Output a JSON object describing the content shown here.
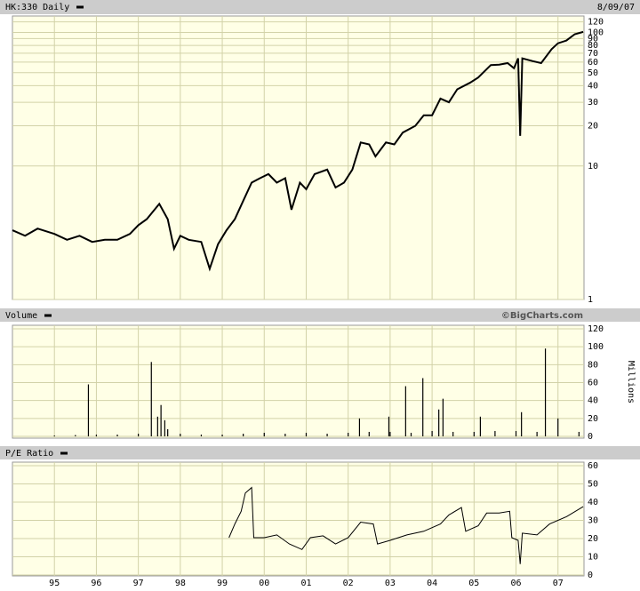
{
  "chart_data": [
    {
      "type": "line",
      "title": "HK:330 Daily",
      "date": "8/09/07",
      "log_scale": true,
      "grid": true,
      "color": "#000000",
      "xlim": [
        1994,
        2007.62
      ],
      "ylim": [
        1,
        125
      ],
      "yticks": [
        1,
        10,
        20,
        30,
        40,
        50,
        60,
        70,
        80,
        90,
        100,
        120
      ],
      "x": [
        1994.0,
        1994.3,
        1994.6,
        1995.0,
        1995.3,
        1995.6,
        1995.9,
        1996.2,
        1996.5,
        1996.8,
        1997.0,
        1997.2,
        1997.5,
        1997.7,
        1997.85,
        1998.0,
        1998.2,
        1998.5,
        1998.7,
        1998.9,
        1999.1,
        1999.3,
        1999.5,
        1999.7,
        1999.9,
        2000.1,
        2000.3,
        2000.5,
        2000.65,
        2000.85,
        2001.0,
        2001.2,
        2001.5,
        2001.7,
        2001.9,
        2002.1,
        2002.3,
        2002.5,
        2002.65,
        2002.9,
        2003.1,
        2003.3,
        2003.6,
        2003.8,
        2004.0,
        2004.2,
        2004.4,
        2004.6,
        2004.9,
        2005.1,
        2005.4,
        2005.6,
        2005.8,
        2005.95,
        2006.05,
        2006.1,
        2006.15,
        2006.4,
        2006.6,
        2006.85,
        2007.0,
        2007.2,
        2007.4,
        2007.6
      ],
      "values": [
        3.3,
        3.0,
        3.4,
        3.1,
        2.8,
        3.0,
        2.7,
        2.8,
        2.8,
        3.1,
        3.6,
        4.0,
        5.2,
        4.0,
        2.4,
        3.0,
        2.8,
        2.7,
        1.7,
        2.6,
        3.3,
        4.0,
        5.5,
        7.5,
        8.1,
        8.7,
        7.5,
        8.1,
        4.7,
        7.5,
        6.7,
        8.7,
        9.4,
        6.9,
        7.5,
        9.4,
        15,
        14.5,
        11.8,
        15,
        14.5,
        17.8,
        20,
        24,
        24,
        32,
        30,
        37.5,
        42,
        46,
        57,
        57.5,
        59,
        54,
        64,
        16.8,
        64,
        61,
        59,
        75,
        83,
        87,
        97,
        101
      ]
    },
    {
      "type": "bar",
      "title": "Volume",
      "source": "©BigCharts.com",
      "ylabel": "Millions",
      "grid": true,
      "color": "#000000",
      "xlim": [
        1994,
        2007.62
      ],
      "ylim": [
        0,
        120
      ],
      "yticks": [
        0,
        20,
        40,
        60,
        80,
        100,
        120
      ],
      "x": [
        1995.0,
        1995.5,
        1995.81,
        1996.0,
        1996.5,
        1997.0,
        1997.31,
        1997.46,
        1997.54,
        1997.63,
        1997.7,
        1998.0,
        1998.5,
        1999.0,
        1999.5,
        2000.0,
        2000.5,
        2001.0,
        2001.5,
        2002.0,
        2002.27,
        2002.5,
        2002.97,
        2003.0,
        2003.37,
        2003.5,
        2003.78,
        2004.0,
        2004.16,
        2004.26,
        2004.5,
        2005.0,
        2005.15,
        2005.5,
        2006.0,
        2006.13,
        2006.5,
        2006.7,
        2007.0,
        2007.5
      ],
      "values": [
        1,
        1.5,
        58,
        2,
        2,
        3,
        83,
        22,
        35,
        18,
        8,
        3,
        2,
        2,
        3,
        4,
        3,
        4,
        3,
        4,
        20,
        5,
        22,
        5,
        56,
        4,
        65,
        6,
        30,
        42,
        5,
        5,
        22,
        6,
        6,
        27,
        5,
        98,
        20,
        5
      ]
    },
    {
      "type": "line",
      "title": "P/E Ratio",
      "grid": true,
      "color": "#000000",
      "xlim": [
        1994,
        2007.62
      ],
      "ylim": [
        0,
        60
      ],
      "yticks": [
        0,
        10,
        20,
        30,
        40,
        50,
        60
      ],
      "xticks": [
        {
          "value": 1995,
          "label": "95"
        },
        {
          "value": 1996,
          "label": "96"
        },
        {
          "value": 1997,
          "label": "97"
        },
        {
          "value": 1998,
          "label": "98"
        },
        {
          "value": 1999,
          "label": "99"
        },
        {
          "value": 2000,
          "label": "00"
        },
        {
          "value": 2001,
          "label": "01"
        },
        {
          "value": 2002,
          "label": "02"
        },
        {
          "value": 2003,
          "label": "03"
        },
        {
          "value": 2004,
          "label": "04"
        },
        {
          "value": 2005,
          "label": "05"
        },
        {
          "value": 2006,
          "label": "06"
        },
        {
          "value": 2007,
          "label": "07"
        }
      ],
      "x": [
        1999.16,
        1999.3,
        1999.45,
        1999.55,
        1999.7,
        1999.75,
        2000.0,
        2000.3,
        2000.6,
        2000.9,
        2001.1,
        2001.4,
        2001.7,
        2002.0,
        2002.3,
        2002.6,
        2002.7,
        2003.0,
        2003.4,
        2003.8,
        2004.2,
        2004.4,
        2004.7,
        2004.8,
        2005.1,
        2005.3,
        2005.6,
        2005.85,
        2005.9,
        2006.05,
        2006.1,
        2006.15,
        2006.5,
        2006.8,
        2007.2,
        2007.6
      ],
      "values": [
        20.5,
        28,
        35,
        45,
        48,
        20.5,
        20.5,
        22,
        17,
        14,
        20.5,
        21.5,
        17,
        20.5,
        29,
        28,
        17,
        19,
        22,
        24,
        28,
        33,
        37,
        24,
        27,
        34,
        34,
        35,
        20.5,
        19,
        6,
        23,
        22,
        28,
        32,
        37.5
      ]
    }
  ]
}
